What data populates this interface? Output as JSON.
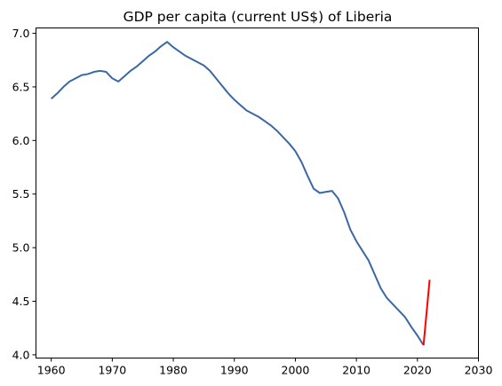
{
  "chart_data": {
    "type": "line",
    "title": "GDP per capita (current US$) of Liberia",
    "xlabel": "",
    "ylabel": "",
    "xlim": [
      1957.5,
      2030
    ],
    "ylim": [
      3.97,
      7.05
    ],
    "x_ticks": [
      1960,
      1970,
      1980,
      1990,
      2000,
      2010,
      2020,
      2030
    ],
    "y_ticks": [
      4.0,
      4.5,
      5.0,
      5.5,
      6.0,
      6.5,
      7.0
    ],
    "grid": false,
    "legend": "none",
    "series": [
      {
        "color": "#3a67a5",
        "x": [
          1960,
          1961,
          1962,
          1963,
          1964,
          1965,
          1966,
          1967,
          1968,
          1969,
          1970,
          1971,
          1972,
          1973,
          1974,
          1975,
          1976,
          1977,
          1978,
          1979,
          1980,
          1981,
          1982,
          1983,
          1984,
          1985,
          1986,
          1987,
          1988,
          1989,
          1990,
          1991,
          1992,
          1993,
          1994,
          1995,
          1996,
          1997,
          1998,
          1999,
          2000,
          2001,
          2002,
          2003,
          2004,
          2005,
          2006,
          2007,
          2008,
          2009,
          2010,
          2011,
          2012,
          2013,
          2014,
          2015,
          2016,
          2017,
          2018,
          2019,
          2020,
          2021
        ],
        "y": [
          6.39,
          6.44,
          6.5,
          6.55,
          6.58,
          6.61,
          6.62,
          6.64,
          6.65,
          6.64,
          6.58,
          6.55,
          6.6,
          6.65,
          6.69,
          6.74,
          6.79,
          6.83,
          6.88,
          6.92,
          6.87,
          6.83,
          6.79,
          6.76,
          6.73,
          6.7,
          6.65,
          6.58,
          6.51,
          6.44,
          6.38,
          6.33,
          6.28,
          6.25,
          6.22,
          6.18,
          6.14,
          6.09,
          6.03,
          5.97,
          5.9,
          5.8,
          5.67,
          5.55,
          5.51,
          5.52,
          5.53,
          5.46,
          5.33,
          5.17,
          5.06,
          4.97,
          4.88,
          4.75,
          4.62,
          4.53,
          4.47,
          4.41,
          4.35,
          4.26,
          4.18,
          4.09
        ]
      },
      {
        "color": "#ff0000",
        "x": [
          2021,
          2022
        ],
        "y": [
          4.09,
          4.7
        ]
      }
    ]
  }
}
